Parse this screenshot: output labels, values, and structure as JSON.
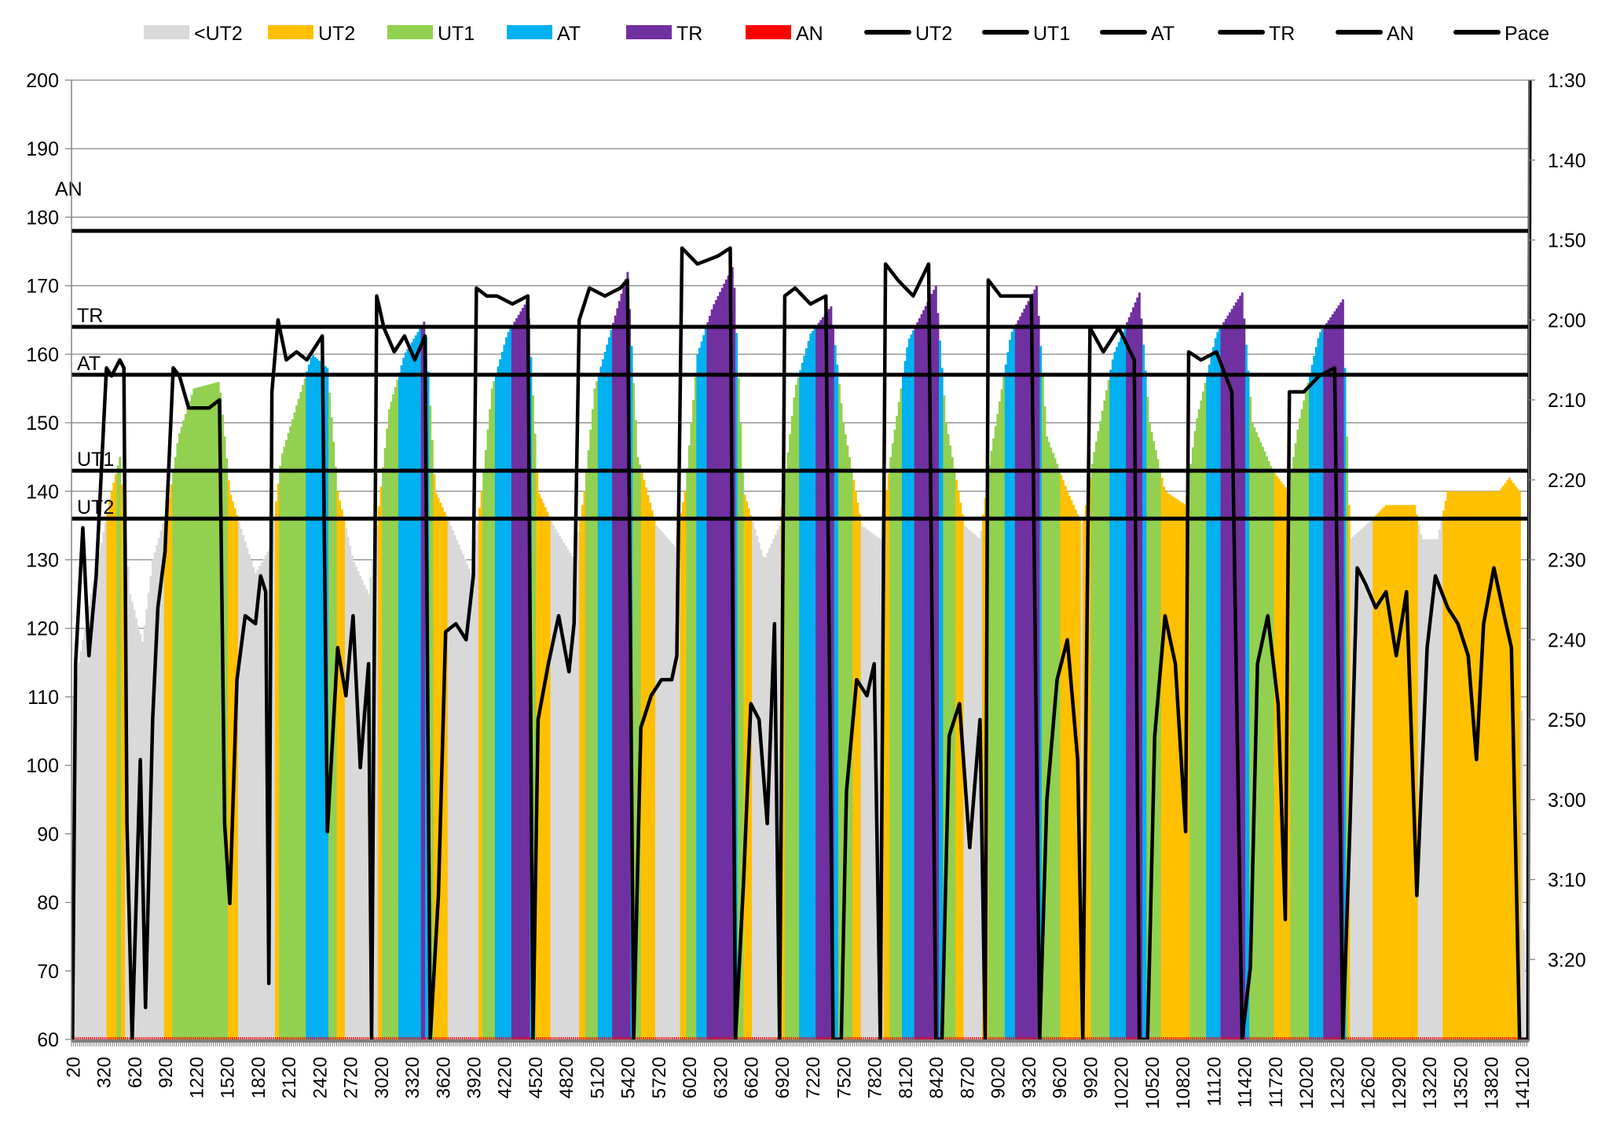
{
  "chart_data": {
    "type": "bar",
    "title": "",
    "xlabel": "",
    "ylabel": "",
    "y2label": "",
    "ylim": [
      60,
      200
    ],
    "yticks": [
      60,
      70,
      80,
      90,
      100,
      110,
      120,
      130,
      140,
      150,
      160,
      170,
      180,
      190,
      200
    ],
    "y2lim_seconds": [
      90,
      210
    ],
    "y2ticks": [
      "1:30",
      "1:40",
      "1:50",
      "2:00",
      "2:10",
      "2:20",
      "2:30",
      "2:40",
      "2:50",
      "3:00",
      "3:10",
      "3:20"
    ],
    "xrange": [
      20,
      14180
    ],
    "xstep": 20,
    "xticks": [
      20,
      320,
      620,
      920,
      1220,
      1520,
      1820,
      2120,
      2420,
      2720,
      3020,
      3320,
      3620,
      3920,
      4220,
      4520,
      4820,
      5120,
      5420,
      5720,
      6020,
      6320,
      6620,
      6920,
      7220,
      7520,
      7820,
      8120,
      8420,
      8720,
      9020,
      9320,
      9620,
      9920,
      10220,
      10520,
      10820,
      11120,
      11420,
      11720,
      12020,
      12320,
      12620,
      12920,
      13220,
      13520,
      13820,
      14120
    ],
    "legend": [
      {
        "label": "<UT2",
        "kind": "box",
        "color": "#d9d9d9"
      },
      {
        "label": "UT2",
        "kind": "box",
        "color": "#ffc000"
      },
      {
        "label": "UT1",
        "kind": "box",
        "color": "#92d050"
      },
      {
        "label": "AT",
        "kind": "box",
        "color": "#00b0f0"
      },
      {
        "label": "TR",
        "kind": "box",
        "color": "#7030a0"
      },
      {
        "label": "AN",
        "kind": "box",
        "color": "#ff0000"
      },
      {
        "label": "UT2",
        "kind": "line",
        "color": "#000000"
      },
      {
        "label": "UT1",
        "kind": "line",
        "color": "#000000"
      },
      {
        "label": "AT",
        "kind": "line",
        "color": "#000000"
      },
      {
        "label": "TR",
        "kind": "line",
        "color": "#000000"
      },
      {
        "label": "AN",
        "kind": "line",
        "color": "#000000"
      },
      {
        "label": "Pace",
        "kind": "line",
        "color": "#000000"
      }
    ],
    "legend_position": "top",
    "thresholds": [
      {
        "label": "AN",
        "value": 178
      },
      {
        "label": "TR",
        "value": 164
      },
      {
        "label": "AT",
        "value": 157
      },
      {
        "label": "UT1",
        "value": 143
      },
      {
        "label": "UT2",
        "value": 136
      }
    ],
    "zone_colors": {
      "below_ut2": "#d9d9d9",
      "ut2": "#ffc000",
      "ut1": "#92d050",
      "at": "#00b0f0",
      "tr": "#7030a0",
      "an": "#ff0000"
    },
    "heart_rate_keyframes": [
      [
        20,
        110
      ],
      [
        200,
        125
      ],
      [
        400,
        140
      ],
      [
        480,
        145
      ],
      [
        580,
        125
      ],
      [
        700,
        118
      ],
      [
        800,
        130
      ],
      [
        950,
        138
      ],
      [
        1050,
        148
      ],
      [
        1200,
        155
      ],
      [
        1450,
        156
      ],
      [
        1550,
        140
      ],
      [
        1650,
        135
      ],
      [
        1800,
        128
      ],
      [
        1950,
        132
      ],
      [
        2050,
        145
      ],
      [
        2250,
        155
      ],
      [
        2350,
        160
      ],
      [
        2500,
        158
      ],
      [
        2600,
        140
      ],
      [
        2750,
        130
      ],
      [
        2900,
        125
      ],
      [
        2980,
        135
      ],
      [
        3100,
        152
      ],
      [
        3250,
        160
      ],
      [
        3450,
        165
      ],
      [
        3550,
        140
      ],
      [
        3700,
        135
      ],
      [
        3900,
        128
      ],
      [
        4000,
        140
      ],
      [
        4100,
        155
      ],
      [
        4250,
        163
      ],
      [
        4450,
        168
      ],
      [
        4550,
        140
      ],
      [
        4700,
        135
      ],
      [
        4900,
        130
      ],
      [
        5000,
        140
      ],
      [
        5100,
        155
      ],
      [
        5250,
        163
      ],
      [
        5420,
        172
      ],
      [
        5520,
        145
      ],
      [
        5700,
        135
      ],
      [
        5880,
        132
      ],
      [
        5980,
        140
      ],
      [
        6100,
        160
      ],
      [
        6250,
        167
      ],
      [
        6450,
        173
      ],
      [
        6550,
        140
      ],
      [
        6750,
        130
      ],
      [
        6900,
        135
      ],
      [
        7050,
        155
      ],
      [
        7200,
        163
      ],
      [
        7400,
        167
      ],
      [
        7520,
        150
      ],
      [
        7700,
        135
      ],
      [
        7880,
        133
      ],
      [
        7980,
        145
      ],
      [
        8150,
        162
      ],
      [
        8420,
        170
      ],
      [
        8520,
        150
      ],
      [
        8700,
        135
      ],
      [
        8850,
        133
      ],
      [
        8950,
        145
      ],
      [
        9150,
        163
      ],
      [
        9400,
        170
      ],
      [
        9500,
        148
      ],
      [
        9700,
        140
      ],
      [
        9850,
        135
      ],
      [
        9950,
        145
      ],
      [
        10150,
        160
      ],
      [
        10400,
        169
      ],
      [
        10500,
        150
      ],
      [
        10650,
        140
      ],
      [
        10850,
        138
      ],
      [
        10950,
        150
      ],
      [
        11150,
        163
      ],
      [
        11400,
        169
      ],
      [
        11500,
        150
      ],
      [
        11700,
        143
      ],
      [
        11850,
        140
      ],
      [
        11950,
        150
      ],
      [
        12150,
        163
      ],
      [
        12380,
        168
      ],
      [
        12450,
        133
      ],
      [
        12600,
        135
      ],
      [
        12800,
        138
      ],
      [
        13080,
        138
      ],
      [
        13150,
        133
      ],
      [
        13300,
        133
      ],
      [
        13400,
        140
      ],
      [
        13700,
        140
      ],
      [
        13900,
        140
      ],
      [
        14000,
        142
      ],
      [
        14100,
        140
      ],
      [
        14150,
        60
      ]
    ],
    "pace_seconds_keyframes": [
      [
        20,
        210
      ],
      [
        50,
        163
      ],
      [
        120,
        146
      ],
      [
        180,
        162
      ],
      [
        250,
        152
      ],
      [
        350,
        126
      ],
      [
        400,
        127
      ],
      [
        480,
        125
      ],
      [
        520,
        126
      ],
      [
        550,
        183
      ],
      [
        600,
        210
      ],
      [
        680,
        175
      ],
      [
        730,
        206
      ],
      [
        800,
        170
      ],
      [
        850,
        156
      ],
      [
        920,
        149
      ],
      [
        1000,
        126
      ],
      [
        1060,
        127
      ],
      [
        1150,
        131
      ],
      [
        1250,
        131
      ],
      [
        1350,
        131
      ],
      [
        1450,
        130
      ],
      [
        1500,
        183
      ],
      [
        1550,
        193
      ],
      [
        1620,
        165
      ],
      [
        1700,
        157
      ],
      [
        1800,
        158
      ],
      [
        1850,
        152
      ],
      [
        1900,
        154
      ],
      [
        1930,
        203
      ],
      [
        1960,
        129
      ],
      [
        2020,
        120
      ],
      [
        2100,
        125
      ],
      [
        2200,
        124
      ],
      [
        2300,
        125
      ],
      [
        2450,
        122
      ],
      [
        2500,
        184
      ],
      [
        2600,
        161
      ],
      [
        2680,
        167
      ],
      [
        2750,
        157
      ],
      [
        2820,
        176
      ],
      [
        2900,
        163
      ],
      [
        2930,
        210
      ],
      [
        2980,
        117
      ],
      [
        3050,
        121
      ],
      [
        3150,
        124
      ],
      [
        3250,
        122
      ],
      [
        3350,
        125
      ],
      [
        3450,
        122
      ],
      [
        3500,
        210
      ],
      [
        3580,
        192
      ],
      [
        3650,
        159
      ],
      [
        3750,
        158
      ],
      [
        3850,
        160
      ],
      [
        3920,
        152
      ],
      [
        3950,
        116
      ],
      [
        4050,
        117
      ],
      [
        4150,
        117
      ],
      [
        4300,
        118
      ],
      [
        4450,
        117
      ],
      [
        4500,
        210
      ],
      [
        4550,
        170
      ],
      [
        4650,
        163
      ],
      [
        4750,
        157
      ],
      [
        4850,
        164
      ],
      [
        4900,
        158
      ],
      [
        4950,
        120
      ],
      [
        5050,
        116
      ],
      [
        5200,
        117
      ],
      [
        5350,
        116
      ],
      [
        5420,
        115
      ],
      [
        5480,
        210
      ],
      [
        5550,
        171
      ],
      [
        5650,
        167
      ],
      [
        5750,
        165
      ],
      [
        5850,
        165
      ],
      [
        5900,
        162
      ],
      [
        5950,
        111
      ],
      [
        6100,
        113
      ],
      [
        6300,
        112
      ],
      [
        6420,
        111
      ],
      [
        6470,
        210
      ],
      [
        6550,
        190
      ],
      [
        6620,
        168
      ],
      [
        6700,
        170
      ],
      [
        6780,
        183
      ],
      [
        6850,
        158
      ],
      [
        6900,
        210
      ],
      [
        6950,
        117
      ],
      [
        7050,
        116
      ],
      [
        7200,
        118
      ],
      [
        7350,
        117
      ],
      [
        7420,
        210
      ],
      [
        7500,
        210
      ],
      [
        7550,
        179
      ],
      [
        7650,
        165
      ],
      [
        7750,
        167
      ],
      [
        7820,
        163
      ],
      [
        7880,
        210
      ],
      [
        7930,
        113
      ],
      [
        8050,
        115
      ],
      [
        8200,
        117
      ],
      [
        8350,
        113
      ],
      [
        8420,
        210
      ],
      [
        8480,
        210
      ],
      [
        8550,
        172
      ],
      [
        8650,
        168
      ],
      [
        8750,
        186
      ],
      [
        8850,
        170
      ],
      [
        8900,
        210
      ],
      [
        8930,
        115
      ],
      [
        9050,
        117
      ],
      [
        9200,
        117
      ],
      [
        9350,
        117
      ],
      [
        9430,
        210
      ],
      [
        9500,
        180
      ],
      [
        9600,
        165
      ],
      [
        9700,
        160
      ],
      [
        9800,
        175
      ],
      [
        9850,
        210
      ],
      [
        9920,
        121
      ],
      [
        10050,
        124
      ],
      [
        10200,
        121
      ],
      [
        10350,
        125
      ],
      [
        10400,
        210
      ],
      [
        10480,
        210
      ],
      [
        10550,
        172
      ],
      [
        10650,
        157
      ],
      [
        10750,
        163
      ],
      [
        10850,
        184
      ],
      [
        10880,
        124
      ],
      [
        11000,
        125
      ],
      [
        11150,
        124
      ],
      [
        11300,
        129
      ],
      [
        11400,
        210
      ],
      [
        11480,
        201
      ],
      [
        11550,
        163
      ],
      [
        11650,
        157
      ],
      [
        11750,
        168
      ],
      [
        11820,
        195
      ],
      [
        11860,
        129
      ],
      [
        12000,
        129
      ],
      [
        12150,
        127
      ],
      [
        12300,
        126
      ],
      [
        12380,
        210
      ],
      [
        12450,
        183
      ],
      [
        12520,
        151
      ],
      [
        12600,
        153
      ],
      [
        12700,
        156
      ],
      [
        12800,
        154
      ],
      [
        12900,
        162
      ],
      [
        13000,
        154
      ],
      [
        13100,
        192
      ],
      [
        13200,
        161
      ],
      [
        13280,
        152
      ],
      [
        13400,
        156
      ],
      [
        13500,
        158
      ],
      [
        13600,
        162
      ],
      [
        13680,
        175
      ],
      [
        13750,
        158
      ],
      [
        13850,
        151
      ],
      [
        13950,
        157
      ],
      [
        14020,
        161
      ],
      [
        14100,
        210
      ],
      [
        14180,
        210
      ],
      [
        14200,
        90
      ]
    ]
  }
}
